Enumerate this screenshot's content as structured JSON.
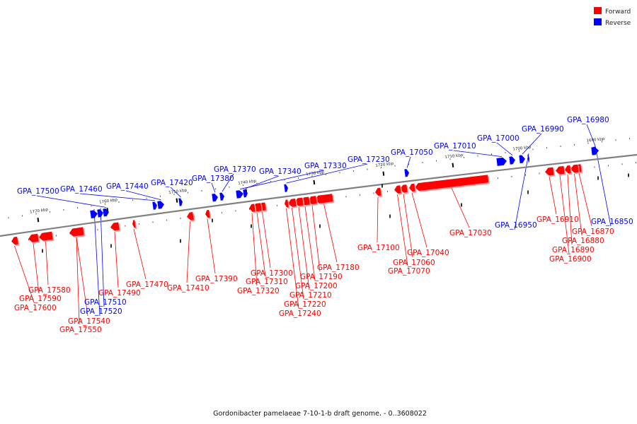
{
  "colors": {
    "forward": "#ff0000",
    "forward_shade": "#ff9a9a",
    "reverse": "#0000ff",
    "backbone": "#808080"
  },
  "legend": {
    "forward": "Forward",
    "reverse": "Reverse"
  },
  "caption": "Gordonibacter pamelaeae 7-10-1-b draft genome. - 0..3608022",
  "ticks": [
    "1690 kbp",
    "1700 kbp",
    "1710 kbp",
    "1720 kbp",
    "1730 kbp",
    "1740 kbp",
    "1750 kbp",
    "1760 kbp",
    "1770 kbp"
  ],
  "genes": [
    {
      "name": "GPA_16850",
      "strand": "reverse"
    },
    {
      "name": "GPA_16870",
      "strand": "forward"
    },
    {
      "name": "GPA_16880",
      "strand": "forward"
    },
    {
      "name": "GPA_16890",
      "strand": "forward"
    },
    {
      "name": "GPA_16900",
      "strand": "forward"
    },
    {
      "name": "GPA_16910",
      "strand": "forward"
    },
    {
      "name": "GPA_16950",
      "strand": "reverse"
    },
    {
      "name": "GPA_16980",
      "strand": "reverse"
    },
    {
      "name": "GPA_16990",
      "strand": "reverse"
    },
    {
      "name": "GPA_17000",
      "strand": "reverse"
    },
    {
      "name": "GPA_17010",
      "strand": "reverse"
    },
    {
      "name": "GPA_17030",
      "strand": "forward"
    },
    {
      "name": "GPA_17040",
      "strand": "forward"
    },
    {
      "name": "GPA_17050",
      "strand": "reverse"
    },
    {
      "name": "GPA_17060",
      "strand": "forward"
    },
    {
      "name": "GPA_17070",
      "strand": "forward"
    },
    {
      "name": "GPA_17100",
      "strand": "forward"
    },
    {
      "name": "GPA_17180",
      "strand": "forward"
    },
    {
      "name": "GPA_17190",
      "strand": "forward"
    },
    {
      "name": "GPA_17200",
      "strand": "forward"
    },
    {
      "name": "GPA_17210",
      "strand": "forward"
    },
    {
      "name": "GPA_17220",
      "strand": "forward"
    },
    {
      "name": "GPA_17230",
      "strand": "reverse"
    },
    {
      "name": "GPA_17240",
      "strand": "forward"
    },
    {
      "name": "GPA_17300",
      "strand": "forward"
    },
    {
      "name": "GPA_17310",
      "strand": "forward"
    },
    {
      "name": "GPA_17320",
      "strand": "forward"
    },
    {
      "name": "GPA_17330",
      "strand": "reverse"
    },
    {
      "name": "GPA_17340",
      "strand": "reverse"
    },
    {
      "name": "GPA_17370",
      "strand": "reverse"
    },
    {
      "name": "GPA_17380",
      "strand": "reverse"
    },
    {
      "name": "GPA_17390",
      "strand": "forward"
    },
    {
      "name": "GPA_17410",
      "strand": "forward"
    },
    {
      "name": "GPA_17420",
      "strand": "reverse"
    },
    {
      "name": "GPA_17440",
      "strand": "reverse"
    },
    {
      "name": "GPA_17460",
      "strand": "reverse"
    },
    {
      "name": "GPA_17470",
      "strand": "forward"
    },
    {
      "name": "GPA_17490",
      "strand": "forward"
    },
    {
      "name": "GPA_17500",
      "strand": "reverse"
    },
    {
      "name": "GPA_17510",
      "strand": "reverse"
    },
    {
      "name": "GPA_17520",
      "strand": "reverse"
    },
    {
      "name": "GPA_17540",
      "strand": "forward"
    },
    {
      "name": "GPA_17550",
      "strand": "forward"
    },
    {
      "name": "GPA_17580",
      "strand": "forward"
    },
    {
      "name": "GPA_17590",
      "strand": "forward"
    },
    {
      "name": "GPA_17600",
      "strand": "forward"
    }
  ]
}
